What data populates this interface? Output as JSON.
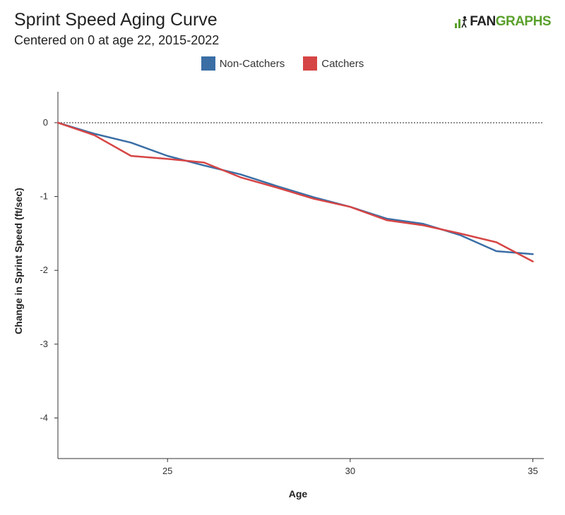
{
  "header": {
    "title": "Sprint Speed Aging Curve",
    "subtitle": "Centered on 0 at age 22, 2015-2022"
  },
  "logo": {
    "fan": "FAN",
    "graphs": "GRAPHS",
    "brand_color": "#5aa02c"
  },
  "chart_data": {
    "type": "line",
    "title": "Sprint Speed Aging Curve",
    "subtitle": "Centered on 0 at age 22, 2015-2022",
    "xlabel": "Age",
    "ylabel": "Change in Sprint Speed (ft/sec)",
    "xlim": [
      22,
      35.3
    ],
    "ylim": [
      -4.55,
      0.42
    ],
    "xticks": [
      25,
      30,
      35
    ],
    "yticks": [
      0,
      -1,
      -2,
      -3,
      -4
    ],
    "reference_line": {
      "y": 0,
      "style": "dotted"
    },
    "legend_position": "top-center",
    "grid": false,
    "series": [
      {
        "name": "Non-Catchers",
        "color": "#3a6ea5",
        "x": [
          22,
          23,
          24,
          25,
          26,
          27,
          28,
          29,
          30,
          31,
          32,
          33,
          34,
          35
        ],
        "y": [
          0,
          -0.15,
          -0.27,
          -0.45,
          -0.58,
          -0.7,
          -0.86,
          -1.01,
          -1.14,
          -1.3,
          -1.37,
          -1.52,
          -1.74,
          -1.78
        ]
      },
      {
        "name": "Catchers",
        "color": "#d64545",
        "x": [
          22,
          23,
          24,
          25,
          26,
          27,
          28,
          29,
          30,
          31,
          32,
          33,
          34,
          35
        ],
        "y": [
          0,
          -0.17,
          -0.45,
          -0.49,
          -0.54,
          -0.74,
          -0.88,
          -1.03,
          -1.14,
          -1.32,
          -1.39,
          -1.5,
          -1.62,
          -1.88
        ]
      }
    ]
  }
}
